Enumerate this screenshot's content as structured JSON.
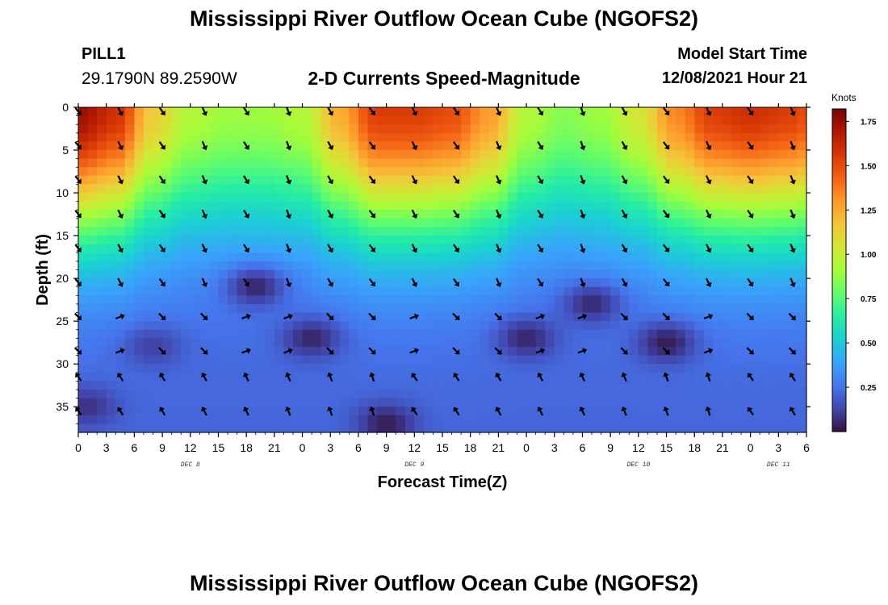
{
  "header": {
    "title": "Mississippi River Outflow Ocean Cube (NGOFS2)",
    "station_id": "PILL1",
    "station_coords": "29.1790N  89.2590W",
    "subtitle": "2-D Currents Speed-Magnitude",
    "model_start_label": "Model Start Time",
    "model_start_value": "12/08/2021 Hour 21"
  },
  "footer": {
    "title": "Mississippi River Outflow Ocean Cube (NGOFS2)"
  },
  "chart_data": {
    "type": "heatmap",
    "title": "2-D Currents Speed-Magnitude",
    "xlabel": "Forecast Time(Z)",
    "ylabel": "Depth (ft)",
    "x_tick_labels": [
      "0",
      "3",
      "6",
      "9",
      "12",
      "15",
      "18",
      "21",
      "0",
      "3",
      "6",
      "9",
      "12",
      "15",
      "18",
      "21",
      "0",
      "3",
      "6",
      "9",
      "12",
      "15",
      "18",
      "21",
      "0",
      "3",
      "6"
    ],
    "day_labels": [
      {
        "label": "DEC 8",
        "tick_index": 4
      },
      {
        "label": "DEC 9",
        "tick_index": 12
      },
      {
        "label": "DEC 10",
        "tick_index": 20
      },
      {
        "label": "DEC 11",
        "tick_index": 25
      }
    ],
    "x_range_hours": [
      0,
      78
    ],
    "y_ticks": [
      0,
      5,
      10,
      15,
      20,
      25,
      30,
      35
    ],
    "y_range": [
      0,
      38
    ],
    "y_inverted": true,
    "colorbar": {
      "unit": "Knots",
      "ticks": [
        "0.25",
        "0.50",
        "0.75",
        "1.00",
        "1.25",
        "1.50",
        "1.75"
      ],
      "range": [
        0.0,
        1.82
      ],
      "colors": [
        "#30123b",
        "#4145ab",
        "#4675ed",
        "#39a2fc",
        "#1bcfd4",
        "#24eca6",
        "#61fc6c",
        "#a4fc3b",
        "#d1e834",
        "#f3c63a",
        "#fe9b2d",
        "#f36315",
        "#d93806",
        "#b11901",
        "#7a0402"
      ]
    },
    "surface_speed_profile": {
      "hours": [
        0,
        4,
        8,
        12,
        16,
        20,
        24,
        28,
        32,
        36,
        40,
        44,
        48,
        52,
        56,
        60,
        64,
        68,
        72,
        76,
        78
      ],
      "speed": [
        1.75,
        1.6,
        1.15,
        0.95,
        0.9,
        0.9,
        0.95,
        1.25,
        1.55,
        1.55,
        1.5,
        1.3,
        0.95,
        0.85,
        0.9,
        1.05,
        1.35,
        1.55,
        1.6,
        1.55,
        1.5
      ]
    },
    "low_speed_features": [
      {
        "hour": 19,
        "depth": 21,
        "speed": 0.05
      },
      {
        "hour": 25,
        "depth": 27,
        "speed": 0.05
      },
      {
        "hour": 33,
        "depth": 37,
        "speed": 0.03
      },
      {
        "hour": 48,
        "depth": 27,
        "speed": 0.05
      },
      {
        "hour": 55,
        "depth": 23,
        "speed": 0.06
      },
      {
        "hour": 63,
        "depth": 27.5,
        "speed": 0.03
      },
      {
        "hour": 8,
        "depth": 28,
        "speed": 0.12
      },
      {
        "hour": 1,
        "depth": 35,
        "speed": 0.08
      }
    ],
    "arrow_rows_depth": [
      0.5,
      4.5,
      8.5,
      12.5,
      16.5,
      20.5,
      24.5,
      28.5,
      31.5,
      35.5
    ],
    "arrow_cols_hours": [
      0,
      4.5,
      9,
      13.5,
      18,
      22.5,
      27,
      31.5,
      36,
      40.5,
      45,
      49.5,
      54,
      58.5,
      63,
      67.5,
      72,
      76.5
    ],
    "arrow_direction_rule": "surface arrows point south-southeast; deep arrows point north-northwest; transitional arrows near low-speed features point east"
  }
}
